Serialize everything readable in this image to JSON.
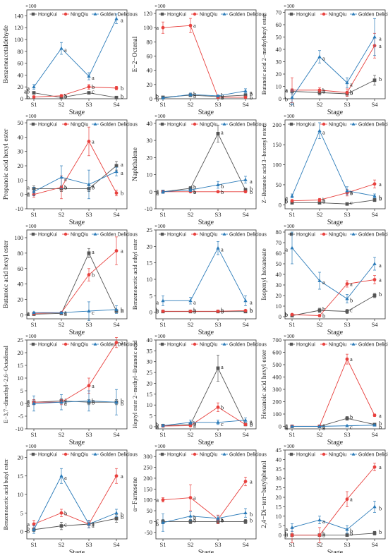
{
  "stages": [
    "S1",
    "S2",
    "S3",
    "S4"
  ],
  "xlabel": "Stage",
  "multiplier": "×100",
  "legend": [
    "HongKui",
    "NingQiu",
    "Golden Delicious"
  ],
  "colors": {
    "HongKui": "#555555",
    "NingQiu": "#e8413e",
    "Golden Delicious": "#2b7bb9"
  },
  "chart_data": [
    {
      "type": "line",
      "ylabel": "Benzeneacetaldehyde",
      "ylim": [
        0,
        150
      ],
      "yticks": [
        0,
        20,
        40,
        60,
        80,
        100,
        120,
        140
      ],
      "series": [
        {
          "name": "HongKui",
          "values": [
            10,
            2,
            10,
            2
          ],
          "err": [
            2,
            1,
            2,
            1
          ],
          "labels": [
            "ab",
            "b",
            "c",
            "b"
          ]
        },
        {
          "name": "NingQiu",
          "values": [
            3,
            5,
            20,
            18
          ],
          "err": [
            2,
            2,
            4,
            3
          ],
          "labels": [
            "b",
            "b",
            "b",
            "b"
          ]
        },
        {
          "name": "Golden Delicious",
          "values": [
            20,
            85,
            38,
            135
          ],
          "err": [
            4,
            10,
            6,
            8
          ],
          "labels": [
            "a",
            "a",
            "a",
            "a"
          ]
        }
      ]
    },
    {
      "type": "line",
      "ylabel": "E−2−Octenal",
      "ylim": [
        0,
        125
      ],
      "yticks": [
        0,
        20,
        40,
        60,
        80,
        100,
        120
      ],
      "series": [
        {
          "name": "HongKui",
          "values": [
            2,
            5,
            3,
            5
          ],
          "err": [
            1,
            2,
            1,
            2
          ],
          "labels": [
            "b",
            "b",
            "b",
            "b"
          ]
        },
        {
          "name": "NingQiu",
          "values": [
            100,
            103,
            2,
            2
          ],
          "err": [
            8,
            10,
            1,
            1
          ],
          "labels": [
            "a",
            "a",
            "b",
            "b"
          ]
        },
        {
          "name": "Golden Delicious",
          "values": [
            1,
            6,
            4,
            11
          ],
          "err": [
            1,
            2,
            1,
            3
          ],
          "labels": [
            "b",
            "b",
            "a",
            "a"
          ]
        }
      ]
    },
    {
      "type": "line",
      "ylabel": "Butanoic acid 2−methylbutyl ester",
      "ylim": [
        0,
        72
      ],
      "yticks": [
        0,
        10,
        20,
        30,
        40,
        50,
        60,
        70
      ],
      "series": [
        {
          "name": "HongKui",
          "values": [
            6,
            5,
            4,
            15
          ],
          "err": [
            2,
            2,
            2,
            4
          ],
          "labels": [
            "a",
            "b",
            "b",
            "b"
          ]
        },
        {
          "name": "NingQiu",
          "values": [
            7,
            7,
            5,
            43
          ],
          "err": [
            10,
            2,
            3,
            10
          ],
          "labels": [
            "a",
            "b",
            "b",
            "a"
          ]
        },
        {
          "name": "Golden Delicious",
          "values": [
            1,
            34,
            13,
            50
          ],
          "err": [
            6,
            5,
            4,
            15
          ],
          "labels": [
            "b",
            "a",
            "a",
            "a"
          ]
        }
      ]
    },
    {
      "type": "line",
      "ylabel": "Propanoic acid hexyl ester",
      "ylim": [
        -10,
        52
      ],
      "yticks": [
        -10,
        0,
        10,
        20,
        30,
        40,
        50
      ],
      "series": [
        {
          "name": "HongKui",
          "values": [
            4,
            4,
            4,
            20
          ],
          "err": [
            2,
            2,
            2,
            3
          ],
          "labels": [
            "a",
            "b",
            "b",
            "a"
          ]
        },
        {
          "name": "NingQiu",
          "values": [
            0,
            5,
            37,
            1
          ],
          "err": [
            2,
            8,
            10,
            2
          ],
          "labels": [
            "a",
            "b",
            "a",
            "b"
          ]
        },
        {
          "name": "Golden Delicious",
          "values": [
            2,
            12,
            7,
            16
          ],
          "err": [
            3,
            8,
            10,
            3
          ],
          "labels": [
            "a",
            "a",
            "a",
            "a"
          ]
        }
      ]
    },
    {
      "type": "line",
      "ylabel": "Naphthalene",
      "ylim": [
        -10,
        42
      ],
      "yticks": [
        -10,
        0,
        10,
        20,
        30,
        40
      ],
      "series": [
        {
          "name": "HongKui",
          "values": [
            0,
            2,
            34,
            1
          ],
          "err": [
            1,
            1,
            5,
            1
          ],
          "labels": [
            "a",
            "b",
            "a",
            "b"
          ]
        },
        {
          "name": "NingQiu",
          "values": [
            0,
            0,
            0,
            0
          ],
          "err": [
            0.5,
            0.5,
            0.5,
            0.5
          ],
          "labels": [
            "a",
            "b",
            "b",
            "b"
          ]
        },
        {
          "name": "Golden Delicious",
          "values": [
            0,
            1,
            4,
            7
          ],
          "err": [
            1,
            1,
            2,
            2
          ],
          "labels": [
            "a",
            "a",
            "b",
            "a"
          ]
        }
      ]
    },
    {
      "type": "line",
      "ylabel": "Z−Butanoic acid 3−hexenyl ester",
      "ylim": [
        -10,
        212
      ],
      "yticks": [
        0,
        50,
        100,
        150,
        200
      ],
      "series": [
        {
          "name": "HongKui",
          "values": [
            5,
            5,
            2,
            12
          ],
          "err": [
            3,
            2,
            2,
            4
          ],
          "labels": [
            "b",
            "b",
            "c",
            "b"
          ]
        },
        {
          "name": "NingQiu",
          "values": [
            10,
            12,
            30,
            52
          ],
          "err": [
            3,
            4,
            8,
            10
          ],
          "labels": [
            "b",
            "b",
            "b",
            "a"
          ]
        },
        {
          "name": "Golden Delicious",
          "values": [
            22,
            185,
            35,
            22
          ],
          "err": [
            5,
            20,
            10,
            5
          ],
          "labels": [
            "a",
            "a",
            "a",
            "b"
          ]
        }
      ]
    },
    {
      "type": "line",
      "ylabel": "Butanoic acid hexyl ester",
      "ylim": [
        -5,
        110
      ],
      "yticks": [
        0,
        20,
        40,
        60,
        80,
        100
      ],
      "series": [
        {
          "name": "HongKui",
          "values": [
            1,
            2,
            80,
            5
          ],
          "err": [
            1,
            1,
            6,
            2
          ],
          "labels": [
            "a",
            "a",
            "a",
            "b"
          ]
        },
        {
          "name": "NingQiu",
          "values": [
            2,
            3,
            52,
            83
          ],
          "err": [
            1,
            1,
            8,
            18
          ],
          "labels": [
            "a",
            "a",
            "b",
            "a"
          ]
        },
        {
          "name": "Golden Delicious",
          "values": [
            3,
            3,
            5,
            7
          ],
          "err": [
            1,
            1,
            12,
            5
          ],
          "labels": [
            "a",
            "a",
            "c",
            "b"
          ]
        }
      ]
    },
    {
      "type": "line",
      "ylabel": "Benzeneacetic acid ethyl ester",
      "ylim": [
        -2,
        25
      ],
      "yticks": [
        0,
        5,
        10,
        15,
        20,
        25
      ],
      "series": [
        {
          "name": "HongKui",
          "values": [
            0.2,
            0.2,
            0.2,
            0.2
          ],
          "err": [
            0.2,
            0.2,
            0.2,
            0.2
          ],
          "labels": [
            "b",
            "b",
            "b",
            "b"
          ]
        },
        {
          "name": "NingQiu",
          "values": [
            0.3,
            0.3,
            0.3,
            0.5
          ],
          "err": [
            0.2,
            0.2,
            0.2,
            0.2
          ],
          "labels": [
            "b",
            "b",
            "b",
            "b"
          ]
        },
        {
          "name": "Golden Delicious",
          "values": [
            3.5,
            3.5,
            19.5,
            3.5
          ],
          "err": [
            1.5,
            1,
            2,
            1.5
          ],
          "labels": [
            "a",
            "a",
            "a",
            "a"
          ]
        }
      ]
    },
    {
      "type": "line",
      "ylabel": "Isopenyl hexanoate",
      "ylim": [
        -2,
        82
      ],
      "yticks": [
        0,
        10,
        20,
        30,
        40,
        50,
        60,
        70,
        80
      ],
      "series": [
        {
          "name": "HongKui",
          "values": [
            1,
            6,
            5,
            20
          ],
          "err": [
            1,
            2,
            2,
            2
          ],
          "labels": [
            "b",
            "b",
            "c",
            "b"
          ]
        },
        {
          "name": "NingQiu",
          "values": [
            2,
            1,
            31,
            35
          ],
          "err": [
            1,
            1,
            3,
            4
          ],
          "labels": [
            "b",
            "b",
            "a",
            "a"
          ]
        },
        {
          "name": "Golden Delicious",
          "values": [
            65,
            34,
            17,
            50
          ],
          "err": [
            15,
            8,
            4,
            6
          ],
          "labels": [
            "a",
            "a",
            "b",
            "a"
          ]
        }
      ]
    },
    {
      "type": "line",
      "ylabel": "E−3,7−dimethyl−2,6−Octadienal",
      "ylim": [
        -10,
        25
      ],
      "yticks": [
        -10,
        -5,
        0,
        5,
        10,
        15,
        20,
        25
      ],
      "series": [
        {
          "name": "HongKui",
          "values": [
            0.5,
            1,
            0.5,
            0.5
          ],
          "err": [
            1,
            1,
            1,
            1
          ],
          "labels": [
            "a",
            "a",
            "b",
            "b"
          ]
        },
        {
          "name": "NingQiu",
          "values": [
            0.5,
            0.5,
            7,
            24
          ],
          "err": [
            1,
            1,
            3,
            2
          ],
          "labels": [
            "a",
            "a",
            "a",
            "a"
          ]
        },
        {
          "name": "Golden Delicious",
          "values": [
            0,
            0.5,
            1,
            0.5
          ],
          "err": [
            3,
            3,
            4,
            5
          ],
          "labels": [
            "a",
            "a",
            "b",
            "b"
          ]
        }
      ]
    },
    {
      "type": "line",
      "ylabel": "Heptyl ester 2−methyl−Butanoic acid",
      "ylim": [
        -1,
        40
      ],
      "yticks": [
        0,
        5,
        10,
        15,
        20,
        25,
        30,
        35,
        40
      ],
      "series": [
        {
          "name": "HongKui",
          "values": [
            0.5,
            1,
            27,
            1
          ],
          "err": [
            0.5,
            0.5,
            6,
            0.5
          ],
          "labels": [
            "b",
            "b",
            "a",
            "b"
          ]
        },
        {
          "name": "NingQiu",
          "values": [
            0.3,
            0.5,
            9,
            1
          ],
          "err": [
            0.5,
            0.5,
            2,
            0.5
          ],
          "labels": [
            "a",
            "a",
            "b",
            "b"
          ]
        },
        {
          "name": "Golden Delicious",
          "values": [
            0.5,
            2,
            2,
            3
          ],
          "err": [
            0.5,
            1,
            1,
            1
          ],
          "labels": [
            "a",
            "a",
            "c",
            "a"
          ]
        }
      ]
    },
    {
      "type": "line",
      "ylabel": "Hexanoic acid hexyl ester",
      "ylim": [
        -20,
        700
      ],
      "yticks": [
        0,
        100,
        200,
        300,
        400,
        500,
        600,
        700
      ],
      "series": [
        {
          "name": "HongKui",
          "values": [
            0,
            0,
            65,
            15
          ],
          "err": [
            2,
            2,
            15,
            5
          ],
          "labels": [
            "a",
            "a",
            "b",
            "b"
          ]
        },
        {
          "name": "NingQiu",
          "values": [
            1,
            1,
            545,
            90
          ],
          "err": [
            2,
            2,
            40,
            10
          ],
          "labels": [
            "a",
            "a",
            "a",
            "a"
          ]
        },
        {
          "name": "Golden Delicious",
          "values": [
            0,
            0,
            5,
            10
          ],
          "err": [
            2,
            2,
            3,
            4
          ],
          "labels": [
            "a",
            "a",
            "c",
            "b"
          ]
        }
      ]
    },
    {
      "type": "line",
      "ylabel": "Benzeneacetic acid butyl ester",
      "ylim": [
        -2,
        22
      ],
      "yticks": [
        0,
        5,
        10,
        15,
        20
      ],
      "series": [
        {
          "name": "HongKui",
          "values": [
            0.5,
            1.5,
            2,
            3.5
          ],
          "err": [
            0.5,
            1,
            1,
            1
          ],
          "labels": [
            "b",
            "c",
            "a",
            "b"
          ]
        },
        {
          "name": "NingQiu",
          "values": [
            2,
            5,
            2,
            15
          ],
          "err": [
            1,
            1,
            1,
            2
          ],
          "labels": [
            "a",
            "b",
            "a",
            "a"
          ]
        },
        {
          "name": "Golden Delicious",
          "values": [
            0.5,
            15,
            2,
            5
          ],
          "err": [
            1,
            2,
            1,
            1
          ],
          "labels": [
            "b",
            "a",
            "a",
            "b"
          ]
        }
      ]
    },
    {
      "type": "line",
      "ylabel": "α−Farnesene",
      "ylim": [
        -80,
        330
      ],
      "yticks": [
        -50,
        0,
        50,
        100,
        150,
        200,
        250,
        300
      ],
      "series": [
        {
          "name": "HongKui",
          "values": [
            0,
            0,
            0,
            0
          ],
          "err": [
            10,
            10,
            10,
            10
          ],
          "labels": [
            "c",
            "b",
            "b",
            "b"
          ]
        },
        {
          "name": "NingQiu",
          "values": [
            100,
            110,
            10,
            185
          ],
          "err": [
            10,
            60,
            20,
            20
          ],
          "labels": [
            "a",
            "a",
            "a",
            "a"
          ]
        },
        {
          "name": "Golden Delicious",
          "values": [
            -5,
            25,
            15,
            40
          ],
          "err": [
            40,
            20,
            10,
            20
          ],
          "labels": [
            "b",
            "b",
            "a",
            "b"
          ]
        }
      ]
    },
    {
      "type": "line",
      "ylabel": "2,4−Di−tert−butylphenol",
      "ylim": [
        -2,
        45
      ],
      "yticks": [
        0,
        5,
        10,
        15,
        20,
        25,
        30,
        35,
        40,
        45
      ],
      "series": [
        {
          "name": "HongKui",
          "values": [
            0,
            0,
            0,
            1
          ],
          "err": [
            0.5,
            0.5,
            0.5,
            1
          ],
          "labels": [
            "b",
            "b",
            "b",
            "b"
          ]
        },
        {
          "name": "NingQiu",
          "values": [
            0,
            0,
            19,
            36
          ],
          "err": [
            4,
            4,
            4,
            2
          ],
          "labels": [
            "b",
            "b",
            "a",
            "a"
          ]
        },
        {
          "name": "Golden Delicious",
          "values": [
            4,
            8,
            3,
            15
          ],
          "err": [
            2,
            2,
            2,
            3
          ],
          "labels": [
            "a",
            "a",
            "b",
            "b"
          ]
        }
      ]
    }
  ]
}
